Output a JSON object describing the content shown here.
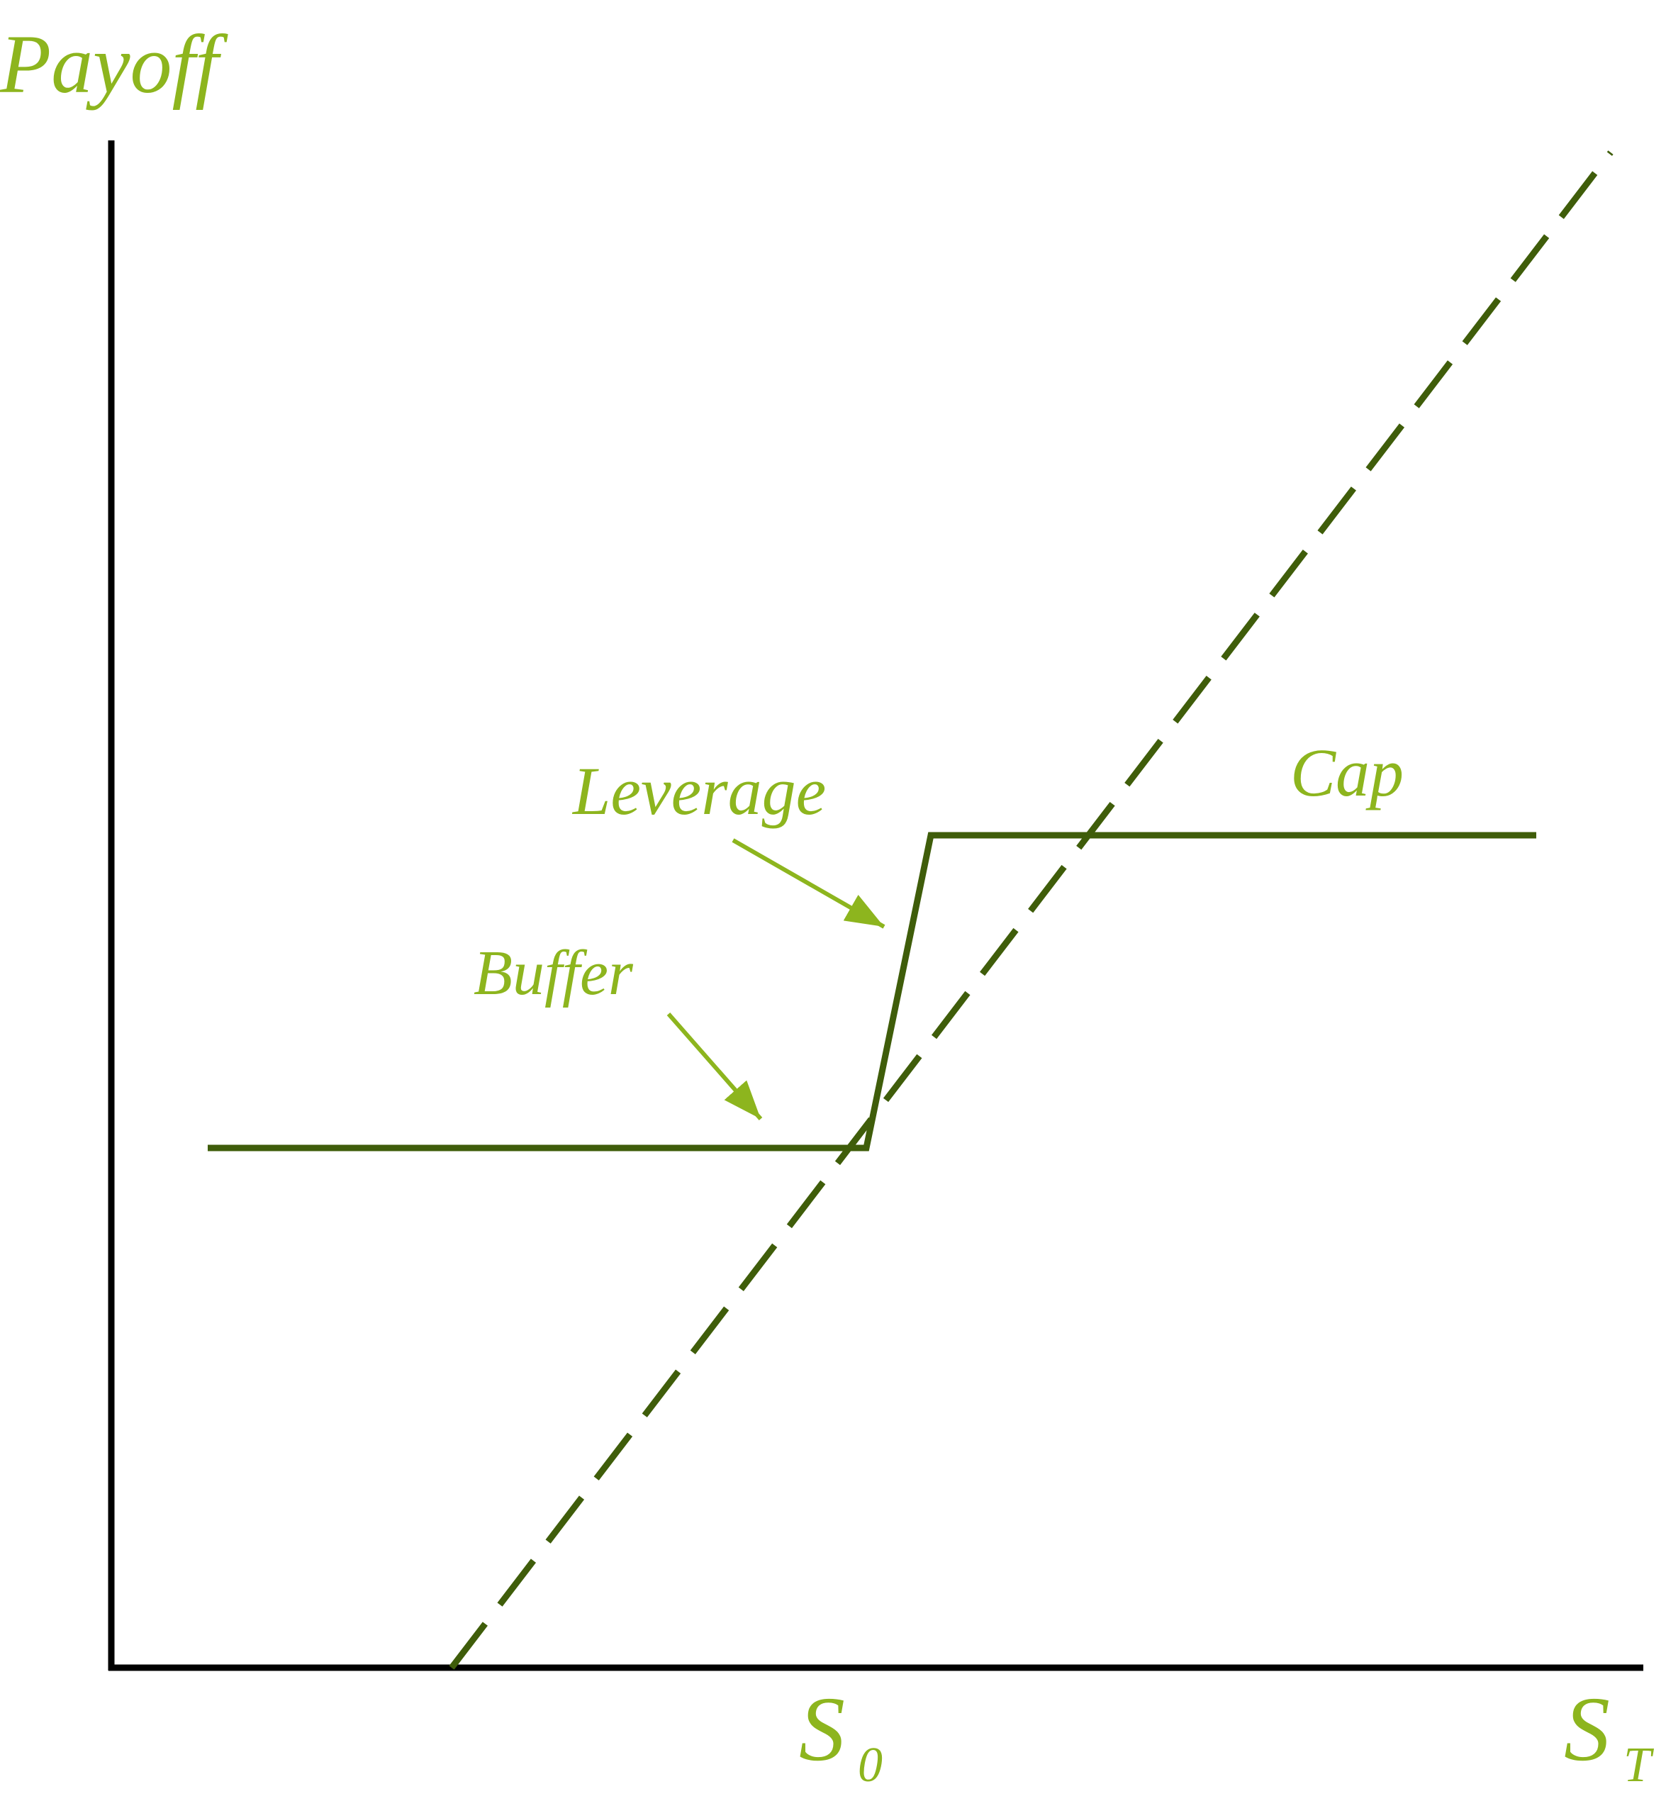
{
  "colors": {
    "label": "#8db51e",
    "line": "#3f5d0a",
    "axis": "#000000",
    "background": "#ffffff"
  },
  "labels": {
    "y_axis": "Payoff",
    "x_axis_main": "S",
    "x_axis_sub": "T",
    "s0_main": "S",
    "s0_sub": "0",
    "leverage": "Leverage",
    "buffer": "Buffer",
    "cap": "Cap"
  },
  "lines": {
    "buffered_payoff": {
      "style": "solid",
      "segments": [
        "buffer-flat",
        "leverage-slope",
        "cap-flat"
      ]
    },
    "underlying_payoff": {
      "style": "dashed"
    }
  },
  "arrows": [
    "leverage-arrow",
    "buffer-arrow"
  ]
}
